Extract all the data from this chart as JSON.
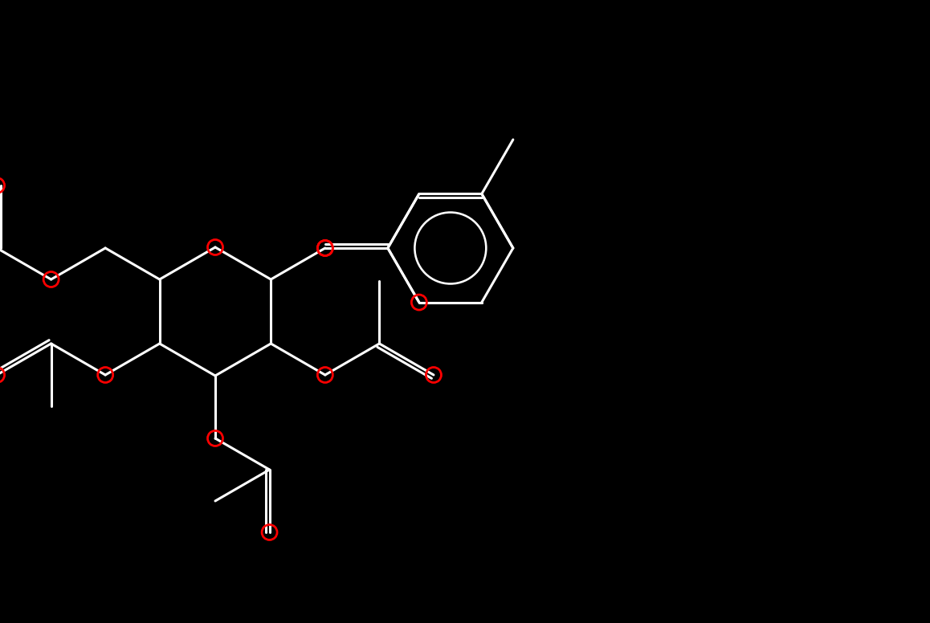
{
  "bg_color": "#000000",
  "bond_color": "#ffffff",
  "oxygen_color": "#ff0000",
  "lw": 2.2,
  "or": 9.5,
  "figsize": [
    11.58,
    7.76
  ],
  "dpi": 100
}
